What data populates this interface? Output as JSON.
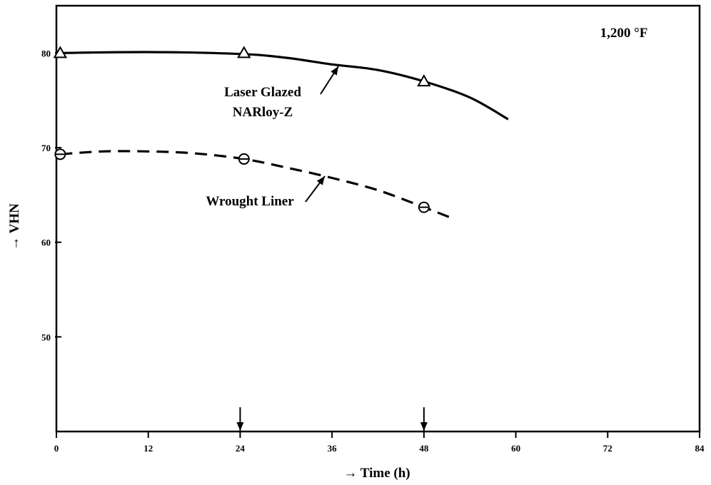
{
  "chart_data": {
    "type": "line",
    "annotation_temp": "1,200 °F",
    "xlabel": "Time (h)",
    "ylabel": "VHN",
    "xlim": [
      0,
      84
    ],
    "ylim": [
      40,
      85
    ],
    "x_ticks": [
      0,
      12,
      24,
      36,
      48,
      60,
      72,
      84
    ],
    "x_tick_labels": [
      "0",
      "12",
      "24",
      "36",
      "48",
      "60",
      "72",
      "84"
    ],
    "y_ticks": [
      50,
      60,
      70,
      80
    ],
    "y_tick_labels": [
      "50",
      "60",
      "70",
      "80"
    ],
    "grid": false,
    "series": [
      {
        "name": "Laser Glazed NARloy-Z",
        "label_lines": [
          "Laser Glazed",
          "NARloy-Z"
        ],
        "style": "solid",
        "marker": "triangle",
        "points": [
          [
            0.5,
            80
          ],
          [
            24.5,
            80
          ],
          [
            48,
            77
          ]
        ],
        "curve": [
          [
            0.5,
            80
          ],
          [
            12,
            80.1
          ],
          [
            24,
            79.9
          ],
          [
            30,
            79.5
          ],
          [
            36,
            78.8
          ],
          [
            42,
            78.2
          ],
          [
            48,
            77
          ],
          [
            54,
            75.3
          ],
          [
            59,
            73
          ]
        ]
      },
      {
        "name": "Wrought Liner",
        "label_lines": [
          "Wrought Liner"
        ],
        "style": "dashed",
        "marker": "circle",
        "points": [
          [
            0.5,
            69.3
          ],
          [
            24.5,
            68.8
          ],
          [
            48,
            63.7
          ]
        ],
        "curve": [
          [
            0.5,
            69.3
          ],
          [
            6,
            69.6
          ],
          [
            12,
            69.6
          ],
          [
            18,
            69.4
          ],
          [
            24.5,
            68.8
          ],
          [
            30,
            67.9
          ],
          [
            36,
            66.8
          ],
          [
            42,
            65.5
          ],
          [
            48,
            63.7
          ],
          [
            51.5,
            62.6
          ]
        ]
      }
    ],
    "arrow_markers_x": [
      24,
      48
    ]
  }
}
